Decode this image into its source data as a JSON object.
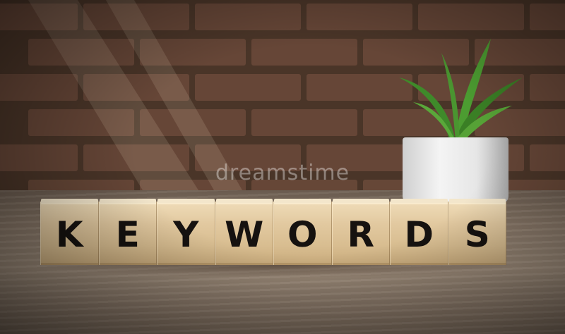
{
  "blocks": [
    "K",
    "E",
    "Y",
    "W",
    "O",
    "R",
    "D",
    "S"
  ],
  "watermark": "dreamstime"
}
